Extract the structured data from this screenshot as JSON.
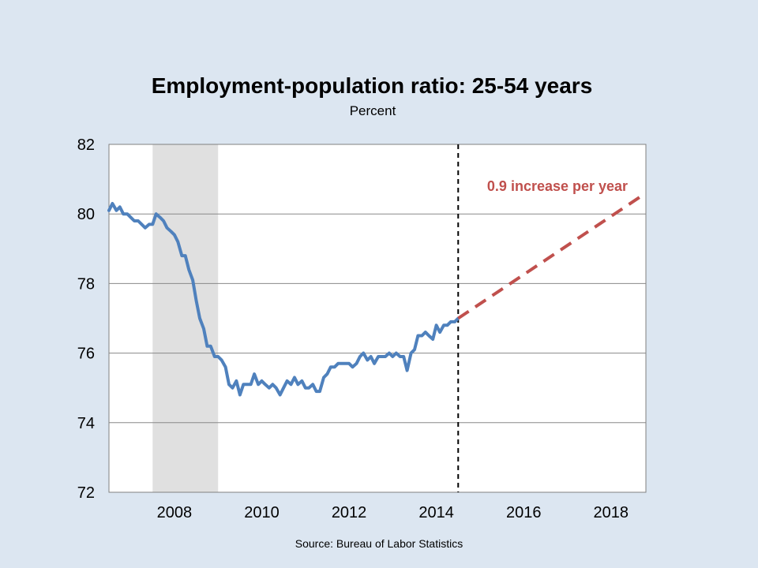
{
  "chart_data": {
    "type": "line",
    "title": "Employment-population ratio: 25-54 years",
    "subtitle": "Percent",
    "source": "Source: Bureau of Labor Statistics",
    "xlim": [
      2006.5,
      2018.8
    ],
    "ylim": [
      72,
      82
    ],
    "x_ticks": [
      2008,
      2010,
      2012,
      2014,
      2016,
      2018
    ],
    "x_tick_labels": [
      "2008",
      "2010",
      "2012",
      "2014",
      "2016",
      "2018"
    ],
    "y_ticks": [
      72,
      74,
      76,
      78,
      80,
      82
    ],
    "y_tick_labels": [
      "72",
      "74",
      "76",
      "78",
      "80",
      "82"
    ],
    "grid": "horizontal",
    "recession_shading": {
      "start": 2007.5,
      "end": 2009.0
    },
    "vertical_marker": {
      "x": 2014.5,
      "style": "dashed"
    },
    "annotation": {
      "text": "0.9 increase per year",
      "color": "#c0504d"
    },
    "series": [
      {
        "color": "#4f81bd",
        "style": "solid",
        "x": [
          2006.5,
          2006.58,
          2006.67,
          2006.75,
          2006.83,
          2006.92,
          2007.0,
          2007.08,
          2007.17,
          2007.25,
          2007.33,
          2007.42,
          2007.5,
          2007.58,
          2007.67,
          2007.75,
          2007.83,
          2007.92,
          2008.0,
          2008.08,
          2008.17,
          2008.25,
          2008.33,
          2008.42,
          2008.5,
          2008.58,
          2008.67,
          2008.75,
          2008.83,
          2008.92,
          2009.0,
          2009.08,
          2009.17,
          2009.25,
          2009.33,
          2009.42,
          2009.5,
          2009.58,
          2009.67,
          2009.75,
          2009.83,
          2009.92,
          2010.0,
          2010.08,
          2010.17,
          2010.25,
          2010.33,
          2010.42,
          2010.5,
          2010.58,
          2010.67,
          2010.75,
          2010.83,
          2010.92,
          2011.0,
          2011.08,
          2011.17,
          2011.25,
          2011.33,
          2011.42,
          2011.5,
          2011.58,
          2011.67,
          2011.75,
          2011.83,
          2011.92,
          2012.0,
          2012.08,
          2012.17,
          2012.25,
          2012.33,
          2012.42,
          2012.5,
          2012.58,
          2012.67,
          2012.75,
          2012.83,
          2012.92,
          2013.0,
          2013.08,
          2013.17,
          2013.25,
          2013.33,
          2013.42,
          2013.5,
          2013.58,
          2013.67,
          2013.75,
          2013.83,
          2013.92,
          2014.0,
          2014.08,
          2014.17,
          2014.25,
          2014.33,
          2014.42,
          2014.5
        ],
        "values": [
          80.1,
          80.3,
          80.1,
          80.2,
          80.0,
          80.0,
          79.9,
          79.8,
          79.8,
          79.7,
          79.6,
          79.7,
          79.7,
          80.0,
          79.9,
          79.8,
          79.6,
          79.5,
          79.4,
          79.2,
          78.8,
          78.8,
          78.4,
          78.1,
          77.5,
          77.0,
          76.7,
          76.2,
          76.2,
          75.9,
          75.9,
          75.8,
          75.6,
          75.1,
          75.0,
          75.2,
          74.8,
          75.1,
          75.1,
          75.1,
          75.4,
          75.1,
          75.2,
          75.1,
          75.0,
          75.1,
          75.0,
          74.8,
          75.0,
          75.2,
          75.1,
          75.3,
          75.1,
          75.2,
          75.0,
          75.0,
          75.1,
          74.9,
          74.9,
          75.3,
          75.4,
          75.6,
          75.6,
          75.7,
          75.7,
          75.7,
          75.7,
          75.6,
          75.7,
          75.9,
          76.0,
          75.8,
          75.9,
          75.7,
          75.9,
          75.9,
          75.9,
          76.0,
          75.9,
          76.0,
          75.9,
          75.9,
          75.5,
          76.0,
          76.1,
          76.5,
          76.5,
          76.6,
          76.5,
          76.4,
          76.8,
          76.6,
          76.8,
          76.8,
          76.9,
          76.9,
          77.0
        ]
      },
      {
        "color": "#c0504d",
        "style": "dashed",
        "x": [
          2014.5,
          2018.8
        ],
        "values": [
          77.0,
          80.6
        ]
      }
    ]
  }
}
